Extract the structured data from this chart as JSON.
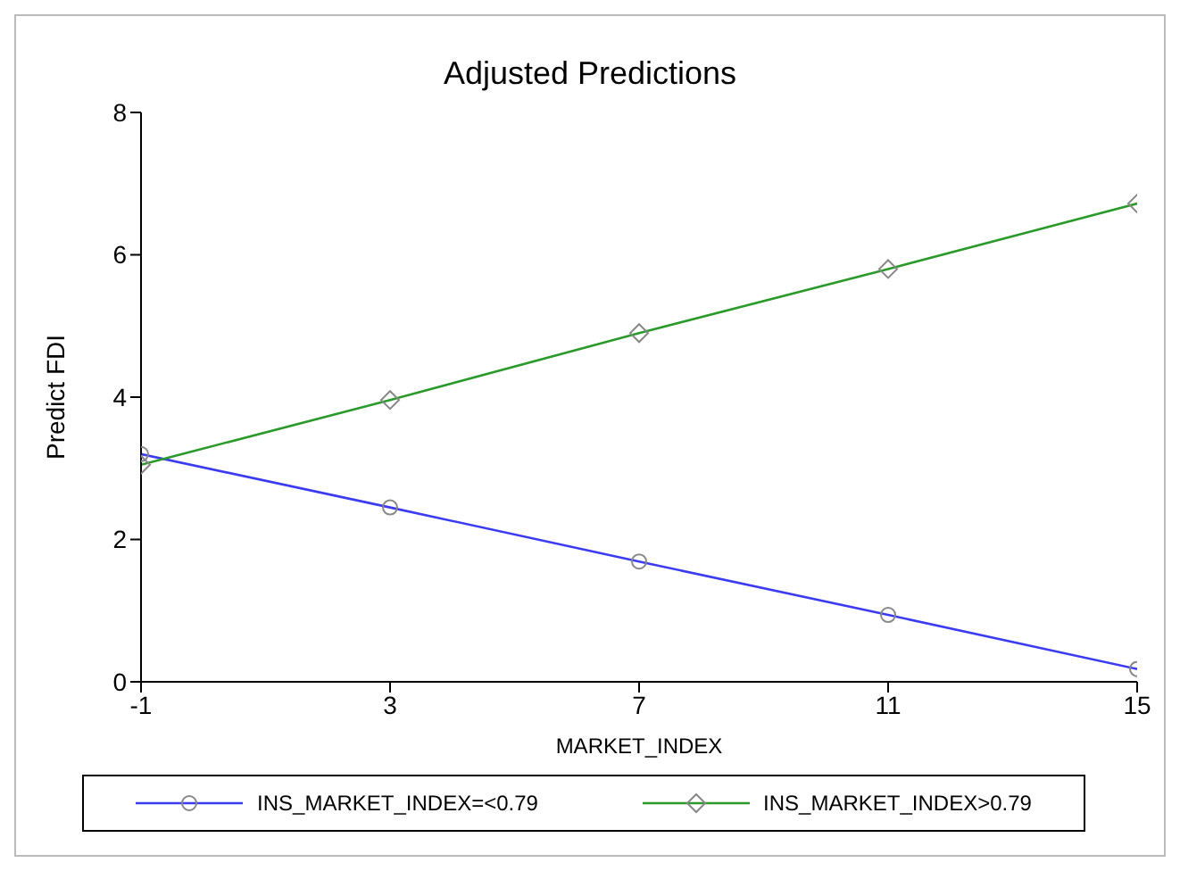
{
  "chart_data": {
    "type": "line",
    "title": "Adjusted Predictions",
    "xlabel": "MARKET_INDEX",
    "ylabel": "Predict FDI",
    "x": [
      -1,
      3,
      7,
      11,
      15
    ],
    "series": [
      {
        "name": "INS_MARKET_INDEX=<0.79",
        "color": "#3b3bf0",
        "values": [
          3.2,
          2.45,
          1.69,
          0.94,
          0.18
        ],
        "marker": "circle"
      },
      {
        "name": "INS_MARKET_INDEX>0.79",
        "color": "#2a9a2a",
        "values": [
          3.05,
          3.96,
          4.9,
          5.8,
          6.72
        ],
        "marker": "diamond"
      }
    ],
    "xlim": [
      -1,
      15
    ],
    "xticks": [
      -1,
      3,
      7,
      11,
      15
    ],
    "ylim": [
      0,
      8
    ],
    "yticks": [
      0,
      2,
      4,
      6,
      8
    ],
    "grid": false,
    "legend": "bottom"
  }
}
